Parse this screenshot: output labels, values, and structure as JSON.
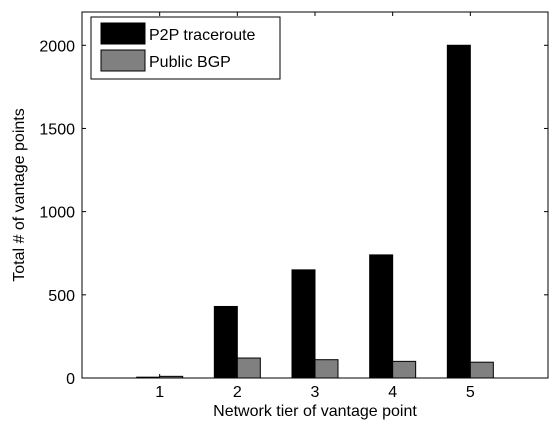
{
  "chart_data": {
    "type": "bar",
    "xlabel": "Network tier of vantage point",
    "ylabel": "Total # of vantage points",
    "categories": [
      "1",
      "2",
      "3",
      "4",
      "5"
    ],
    "ylim": [
      0,
      2200
    ],
    "yticks": [
      0,
      500,
      1000,
      1500,
      2000
    ],
    "grid": false,
    "legend_position": "top-left",
    "series": [
      {
        "name": "P2P traceroute",
        "color": "#000000",
        "values": [
          5,
          430,
          650,
          740,
          2000
        ]
      },
      {
        "name": "Public BGP",
        "color": "#808080",
        "values": [
          10,
          120,
          110,
          100,
          95
        ]
      }
    ]
  }
}
